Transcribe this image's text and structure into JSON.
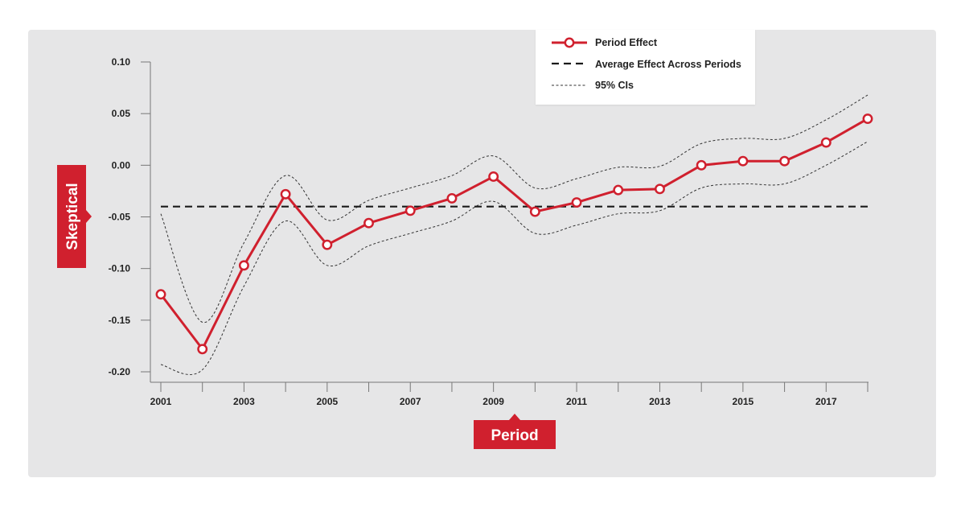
{
  "chart_data": {
    "type": "line",
    "xlabel": "Period",
    "ylabel": "Skeptical",
    "x": [
      2001,
      2002,
      2003,
      2004,
      2005,
      2006,
      2007,
      2008,
      2009,
      2010,
      2011,
      2012,
      2013,
      2014,
      2015,
      2016,
      2017,
      2018
    ],
    "x_tick_labels": [
      "2001",
      "2003",
      "2005",
      "2007",
      "2009",
      "2011",
      "2013",
      "2015",
      "2017"
    ],
    "y_tick_labels": [
      "0.10",
      "0.05",
      "0.00",
      "-0.05",
      "-0.10",
      "-0.15",
      "-0.20"
    ],
    "y_ticks": [
      0.1,
      0.05,
      0.0,
      -0.05,
      -0.1,
      -0.15,
      -0.2
    ],
    "xlim": [
      2001,
      2018
    ],
    "ylim": [
      -0.2,
      0.1
    ],
    "grid": false,
    "legend_position": "top-right",
    "series": [
      {
        "name": "Period Effect",
        "color": "#d0202e",
        "style": "solid-with-open-circles",
        "values": [
          -0.125,
          -0.178,
          -0.097,
          -0.028,
          -0.077,
          -0.056,
          -0.044,
          -0.032,
          -0.011,
          -0.045,
          -0.036,
          -0.024,
          -0.023,
          0.0,
          0.004,
          0.004,
          0.022,
          0.045
        ]
      },
      {
        "name": "Average Effect Across Periods",
        "color": "#1a1a1a",
        "style": "long-dash",
        "values": [
          -0.04,
          -0.04,
          -0.04,
          -0.04,
          -0.04,
          -0.04,
          -0.04,
          -0.04,
          -0.04,
          -0.04,
          -0.04,
          -0.04,
          -0.04,
          -0.04,
          -0.04,
          -0.04,
          -0.04,
          -0.04
        ]
      },
      {
        "name": "95% CIs",
        "color": "#333333",
        "style": "short-dash",
        "upper": [
          -0.047,
          -0.152,
          -0.075,
          -0.01,
          -0.053,
          -0.034,
          -0.022,
          -0.01,
          0.009,
          -0.022,
          -0.013,
          -0.002,
          -0.001,
          0.021,
          0.026,
          0.026,
          0.044,
          0.068
        ],
        "lower": [
          -0.193,
          -0.198,
          -0.117,
          -0.054,
          -0.097,
          -0.078,
          -0.066,
          -0.054,
          -0.035,
          -0.066,
          -0.058,
          -0.047,
          -0.044,
          -0.022,
          -0.018,
          -0.018,
          0.0,
          0.023
        ]
      }
    ]
  }
}
